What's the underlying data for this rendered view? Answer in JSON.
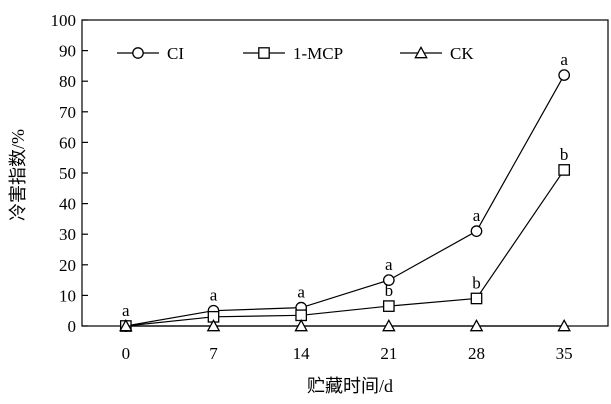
{
  "chart_data": {
    "type": "line",
    "xlabel": "贮藏时间/d",
    "ylabel": "冷害指数/%",
    "x": [
      0,
      7,
      14,
      21,
      28,
      35
    ],
    "ylim": [
      0,
      100
    ],
    "yticks": [
      0,
      10,
      20,
      30,
      40,
      50,
      60,
      70,
      80,
      90,
      100
    ],
    "legend_position": "top",
    "grid": false,
    "series": [
      {
        "name": "CI",
        "marker": "circle",
        "values": [
          0,
          5,
          6,
          15,
          31,
          82
        ],
        "labels": [
          "a",
          "a",
          "a",
          "a",
          "a",
          "a"
        ]
      },
      {
        "name": "1-MCP",
        "marker": "square",
        "values": [
          0,
          3,
          3.5,
          6.5,
          9,
          51
        ],
        "labels": [
          "",
          "",
          "",
          "b",
          "b",
          "b"
        ]
      },
      {
        "name": "CK",
        "marker": "triangle",
        "values": [
          0,
          0,
          0,
          0,
          0,
          0
        ],
        "labels": [
          "",
          "",
          "",
          "",
          "",
          ""
        ]
      }
    ]
  }
}
